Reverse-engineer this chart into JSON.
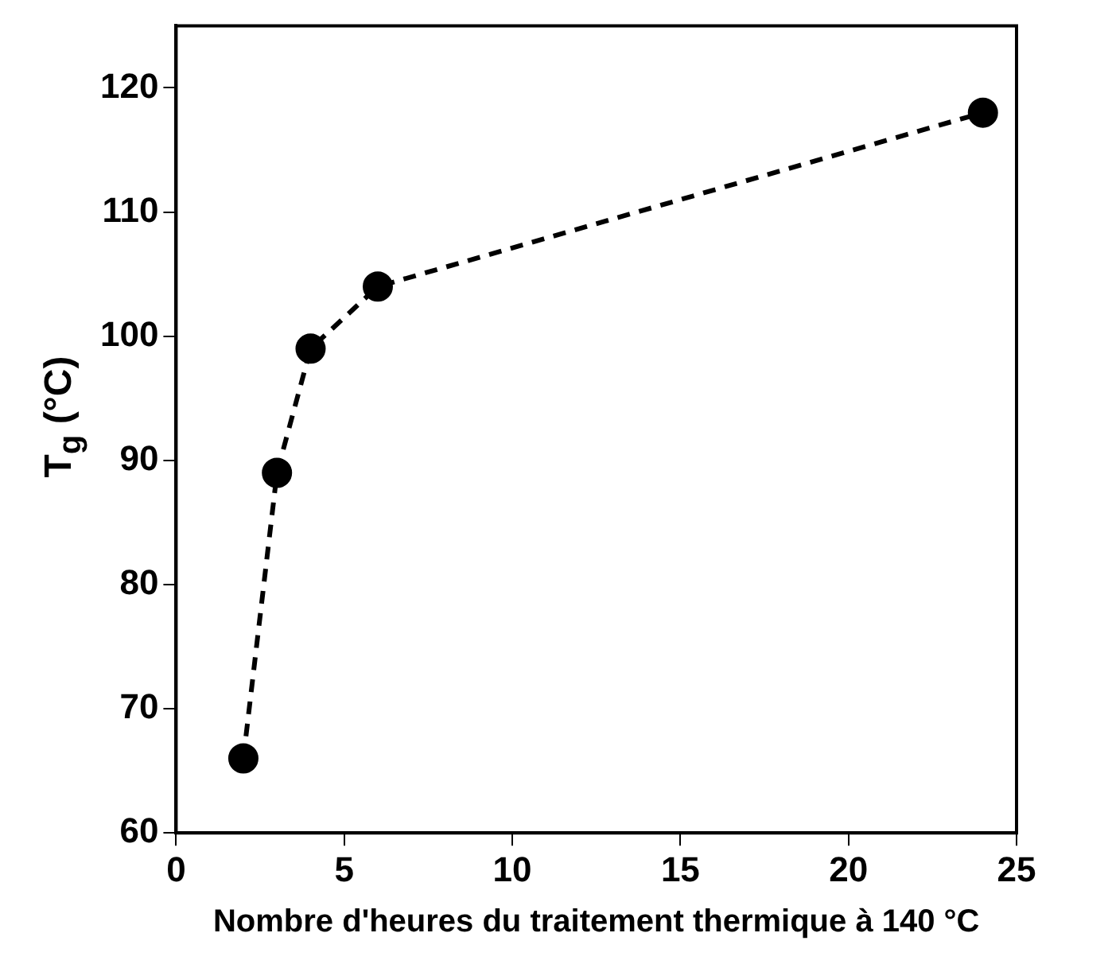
{
  "chart_data": {
    "type": "line",
    "xlabel": "Nombre d'heures du traitement thermique à 140 °C",
    "ylabel": "T$_{g}$ (°C)",
    "x": [
      2,
      3,
      4,
      6,
      24
    ],
    "series": [
      {
        "color": "#000000",
        "values": [
          66,
          89,
          99,
          104,
          118
        ]
      }
    ],
    "xlim": [
      0,
      25
    ],
    "xticks": [
      0,
      5,
      10,
      15,
      20,
      25
    ],
    "ylim": [
      60,
      125
    ],
    "yticks": [
      60,
      70,
      80,
      90,
      100,
      110,
      120
    ],
    "grid": false,
    "legend": false,
    "marker": "circle",
    "line_style": "dashed"
  }
}
